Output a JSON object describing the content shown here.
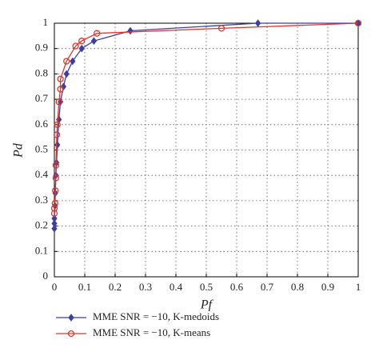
{
  "chart_data": {
    "type": "line",
    "xlabel": "Pf",
    "ylabel": "Pd",
    "xlim": [
      0,
      1
    ],
    "ylim": [
      0,
      1
    ],
    "xticks": [
      0,
      0.1,
      0.2,
      0.3,
      0.4,
      0.5,
      0.6,
      0.7,
      0.8,
      0.9,
      1
    ],
    "yticks": [
      0,
      0.1,
      0.2,
      0.3,
      0.4,
      0.5,
      0.6,
      0.7,
      0.8,
      0.9,
      1
    ],
    "grid": true,
    "series": [
      {
        "name": "MME SNR = −10, K-medoids",
        "color": "#3b3fa0",
        "marker": "diamond",
        "x": [
          0,
          0,
          0,
          0.002,
          0.003,
          0.005,
          0.007,
          0.01,
          0.015,
          0.02,
          0.03,
          0.04,
          0.06,
          0.09,
          0.13,
          0.25,
          0.67,
          1
        ],
        "values": [
          0.19,
          0.21,
          0.23,
          0.28,
          0.33,
          0.4,
          0.45,
          0.52,
          0.62,
          0.69,
          0.75,
          0.8,
          0.85,
          0.9,
          0.93,
          0.97,
          1,
          1
        ]
      },
      {
        "name": "MME SNR = −10, K-means",
        "color": "#e0352b",
        "marker": "circle",
        "x": [
          0,
          0,
          0.002,
          0.003,
          0.005,
          0.005,
          0.008,
          0.01,
          0.015,
          0.02,
          0.02,
          0.04,
          0.07,
          0.09,
          0.14,
          0.55,
          1
        ],
        "values": [
          0.25,
          0.27,
          0.29,
          0.34,
          0.39,
          0.44,
          0.56,
          0.6,
          0.69,
          0.74,
          0.78,
          0.85,
          0.91,
          0.93,
          0.96,
          0.98,
          1
        ]
      }
    ]
  }
}
